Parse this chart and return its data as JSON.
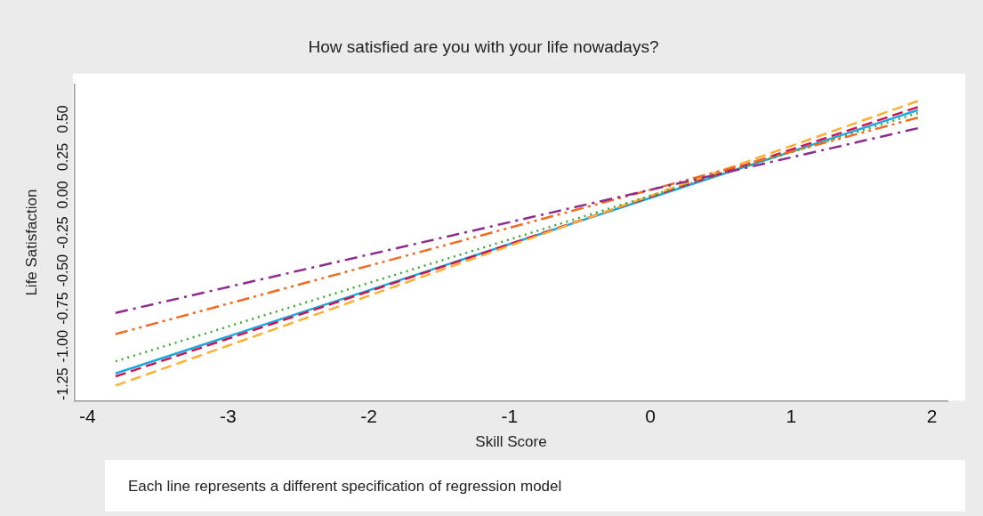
{
  "chart_data": {
    "type": "line",
    "title": "How satisfied are you with your life nowadays?",
    "xlabel": "Skill Score",
    "ylabel": "Life Satisfaction",
    "annotations": [
      "Each line represents a different specification of regression model"
    ],
    "xlim": [
      -4.09,
      2.11
    ],
    "xticks": [
      -4,
      -3,
      -2,
      -1,
      0,
      1,
      2
    ],
    "ylim": [
      -1.36,
      0.73
    ],
    "yticks": [
      {
        "value": -1.25,
        "label": "-1.25"
      },
      {
        "value": -1,
        "label": "-1.00"
      },
      {
        "value": -0.75,
        "label": "-0.75"
      },
      {
        "value": -0.5,
        "label": "-0.50"
      },
      {
        "value": -0.25,
        "label": "-0.25"
      },
      {
        "value": 0,
        "label": "0.00"
      },
      {
        "value": 0.25,
        "label": "0.25"
      },
      {
        "value": 0.5,
        "label": "0.50"
      }
    ],
    "grid": false,
    "legend": false,
    "marker": "none",
    "x": [
      -3.8,
      1.9
    ],
    "series": [
      {
        "color": "#8e2c8e",
        "line_style": "dashdot",
        "values": [
          -0.78,
          0.44
        ]
      },
      {
        "color": "#f26b21",
        "line_style": "dashdotdot",
        "values": [
          -0.92,
          0.51
        ]
      },
      {
        "color": "#3aaa35",
        "line_style": "dotted",
        "values": [
          -1.1,
          0.54
        ]
      },
      {
        "color": "#fbb034",
        "line_style": "dashed",
        "values": [
          -1.26,
          0.62
        ]
      },
      {
        "color": "#d0104c",
        "line_style": "dashed",
        "values": [
          -1.2,
          0.58
        ]
      },
      {
        "color": "#1ba8e0",
        "line_style": "solid",
        "values": [
          -1.18,
          0.56
        ]
      }
    ]
  }
}
